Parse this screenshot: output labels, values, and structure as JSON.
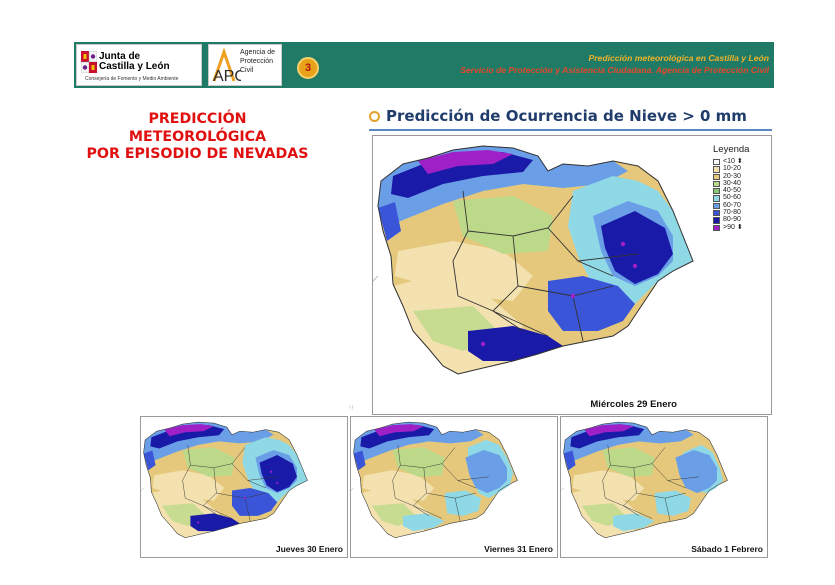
{
  "header": {
    "org_logo": {
      "line1": "Junta de",
      "line2": "Castilla y León",
      "line3": "Consejería de Fomento y Medio Ambiente"
    },
    "agency_logo": {
      "initials": "APC",
      "line1": "Agencia de",
      "line2": "Protección",
      "line3": "Civil"
    },
    "page_number": "3",
    "line1": "Predicción meteorológica en Castilla y León",
    "line2": "Servicio de Protección y Asistencia Ciudadana. Agencia de Protección Civil",
    "bar_color": "#1f7b66"
  },
  "left_title": {
    "line1": "PREDICCIÓN",
    "line2": "METEOROLÓGICA",
    "line3": "POR EPISODIO DE NEVADAS"
  },
  "main_map": {
    "title": "Predicción de Ocurrencia de Nieve > 0 mm",
    "day": "Miércoles 29 Enero"
  },
  "legend": {
    "title": "Leyenda",
    "items": [
      {
        "label": "<10",
        "color": "#ffffff",
        "arrow": true
      },
      {
        "label": "10-20",
        "color": "#f3e1b0"
      },
      {
        "label": "20-30",
        "color": "#e5c87c"
      },
      {
        "label": "30-40",
        "color": "#bcd98a"
      },
      {
        "label": "40-50",
        "color": "#86c873"
      },
      {
        "label": "50-60",
        "color": "#8fd8e6"
      },
      {
        "label": "60-70",
        "color": "#6a9fe8"
      },
      {
        "label": "70-80",
        "color": "#3a55d8"
      },
      {
        "label": "80-90",
        "color": "#1a1aa8"
      },
      {
        "label": ">90",
        "color": "#a020c8",
        "arrow": true
      }
    ]
  },
  "mini_maps": [
    {
      "day": "Jueves 30 Enero"
    },
    {
      "day": "Viernes 31 Enero"
    },
    {
      "day": "Sábado 1 Febrero"
    }
  ]
}
